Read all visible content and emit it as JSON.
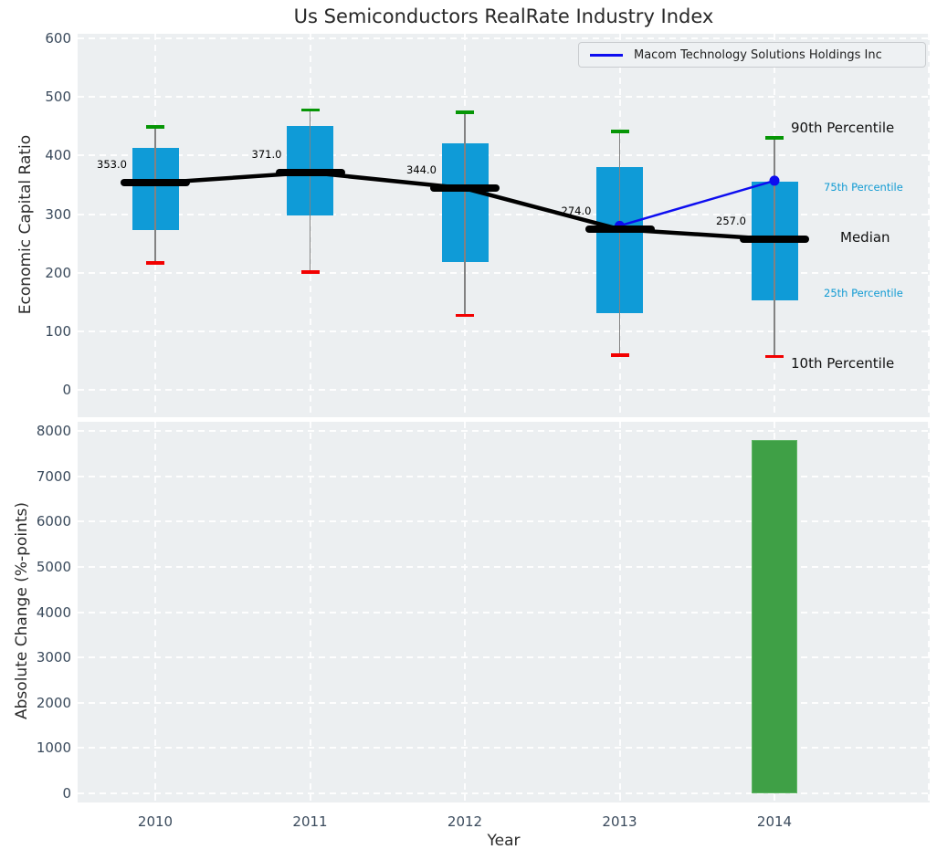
{
  "title": "Us Semiconductors RealRate Industry Index",
  "legend": {
    "label": "Macom Technology Solutions Holdings Inc"
  },
  "axes": {
    "x_label": "Year",
    "top_y_label": "Economic Capital Ratio",
    "bottom_y_label": "Absolute Change (%-points)"
  },
  "annotations": {
    "p90": "90th Percentile",
    "p75": "75th Percentile",
    "median": "Median",
    "p25": "25th Percentile",
    "p10": "10th Percentile"
  },
  "colors": {
    "box_fill": "#0f9bd7",
    "bar_fill": "#3fa046",
    "bar_edge": "#5fb565",
    "cap_high": "#069606",
    "cap_low": "#f20000",
    "whisker": "#828282",
    "median_line": "#000000",
    "company_line": "#0d0df0",
    "plot_bg": "#eceff1",
    "grid": "#ffffff",
    "tick_label": "#3a4a5c",
    "percentile_small_label": "#129bd3"
  },
  "chart_data": [
    {
      "type": "boxplot",
      "title": "Us Semiconductors RealRate Industry Index",
      "xlabel": "Year",
      "ylabel": "Economic Capital Ratio",
      "categories": [
        "2010",
        "2011",
        "2012",
        "2013",
        "2014"
      ],
      "yticks": [
        0,
        100,
        200,
        300,
        400,
        500,
        600
      ],
      "ylim": [
        -47,
        608
      ],
      "grid": true,
      "legend_position": "upper right",
      "series": [
        {
          "name": "90th Percentile",
          "values": [
            449,
            478,
            474,
            441,
            430
          ]
        },
        {
          "name": "75th Percentile",
          "values": [
            413,
            450,
            421,
            380,
            355
          ]
        },
        {
          "name": "Median",
          "values": [
            353,
            371,
            344,
            274,
            257
          ]
        },
        {
          "name": "25th Percentile",
          "values": [
            272,
            298,
            218,
            131,
            152
          ]
        },
        {
          "name": "10th Percentile",
          "values": [
            217,
            201,
            127,
            59,
            57
          ]
        },
        {
          "name": "Macom Technology Solutions Holdings Inc",
          "type": "line",
          "values": [
            null,
            null,
            null,
            280,
            357
          ]
        }
      ],
      "median_labels": [
        "353.0",
        "371.0",
        "344.0",
        "274.0",
        "257.0"
      ]
    },
    {
      "type": "bar",
      "xlabel": "Year",
      "ylabel": "Absolute Change (%-points)",
      "categories": [
        "2010",
        "2011",
        "2012",
        "2013",
        "2014"
      ],
      "yticks": [
        0,
        1000,
        2000,
        3000,
        4000,
        5000,
        6000,
        7000,
        8000
      ],
      "ylim": [
        0,
        8220
      ],
      "grid": true,
      "values": [
        null,
        null,
        null,
        null,
        7800
      ]
    }
  ]
}
